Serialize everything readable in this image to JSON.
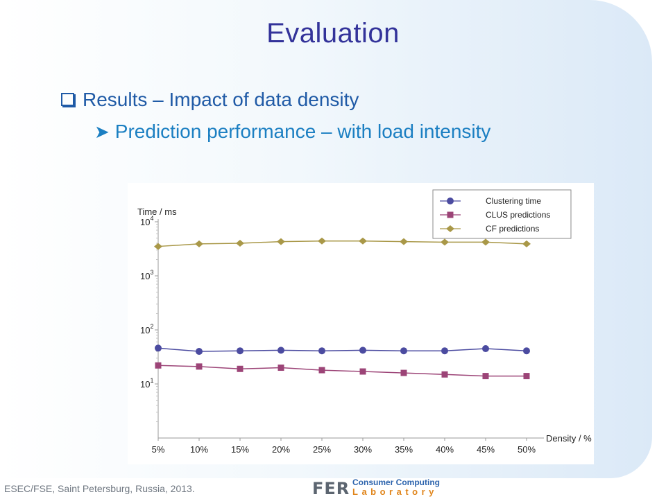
{
  "slide": {
    "title": "Evaluation",
    "bullet1": "Results – Impact of data density",
    "bullet2": "Prediction performance – with load intensity",
    "footer": "ESEC/FSE, Saint Petersburg, Russia, 2013.",
    "logo": {
      "mark": "FER",
      "line1": "Consumer Computing",
      "line2": "Laboratory"
    },
    "colors": {
      "title": "#33339a",
      "bullet1": "#1f5aa6",
      "bullet2": "#1b7fc2"
    }
  },
  "chart_data": {
    "type": "line",
    "ylabel": "Time / ms",
    "xlabel": "Density / %",
    "y_scale": "log",
    "ylim": [
      1,
      10000
    ],
    "y_ticks": [
      {
        "base": "10",
        "exp": "4",
        "value": 10000
      },
      {
        "base": "10",
        "exp": "3",
        "value": 1000
      },
      {
        "base": "10",
        "exp": "2",
        "value": 100
      },
      {
        "base": "10",
        "exp": "1",
        "value": 10
      }
    ],
    "categories": [
      "5%",
      "10%",
      "15%",
      "20%",
      "25%",
      "30%",
      "35%",
      "40%",
      "45%",
      "50%"
    ],
    "grid": false,
    "legend_position": "top-right",
    "series": [
      {
        "name": "Clustering time",
        "color": "#4b4ba0",
        "marker": "circle",
        "values": [
          46,
          40,
          41,
          42,
          41,
          42,
          41,
          41,
          45,
          41
        ]
      },
      {
        "name": "CLUS predictions",
        "color": "#9c4477",
        "marker": "square",
        "values": [
          22,
          21,
          19,
          20,
          18,
          17,
          16,
          15,
          14,
          14
        ]
      },
      {
        "name": "CF predictions",
        "color": "#a99848",
        "marker": "diamond",
        "values": [
          3500,
          3900,
          4000,
          4300,
          4400,
          4400,
          4300,
          4200,
          4200,
          3900
        ]
      }
    ]
  }
}
